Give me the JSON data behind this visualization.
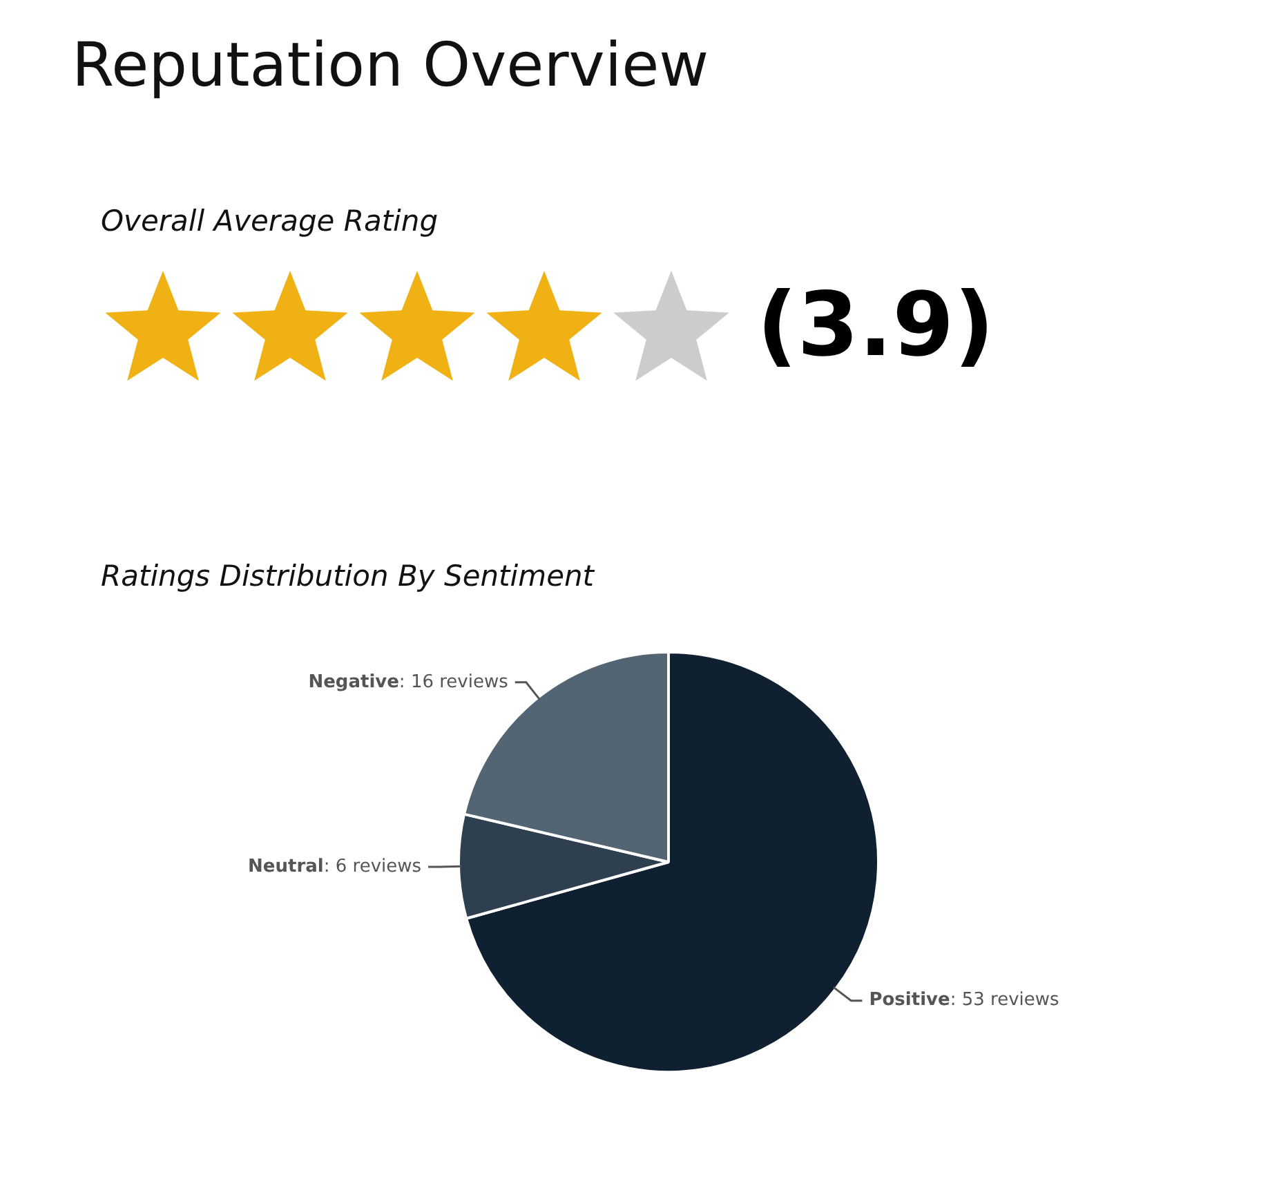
{
  "chart_data": [
    {
      "type": "other",
      "title": "Reputation Overview",
      "subtitle": "Overall Average Rating",
      "annotations": [
        "(3.9)"
      ]
    },
    {
      "type": "pie",
      "title": "Ratings Distribution By Sentiment",
      "categories": [
        "Positive",
        "Neutral",
        "Negative"
      ],
      "values": [
        53,
        6,
        16
      ],
      "colors": [
        "#0f2030",
        "#2e3f4f",
        "#536473"
      ],
      "value_labels": [
        ": 53 reviews",
        ": 6 reviews",
        ": 16 reviews"
      ]
    }
  ]
}
